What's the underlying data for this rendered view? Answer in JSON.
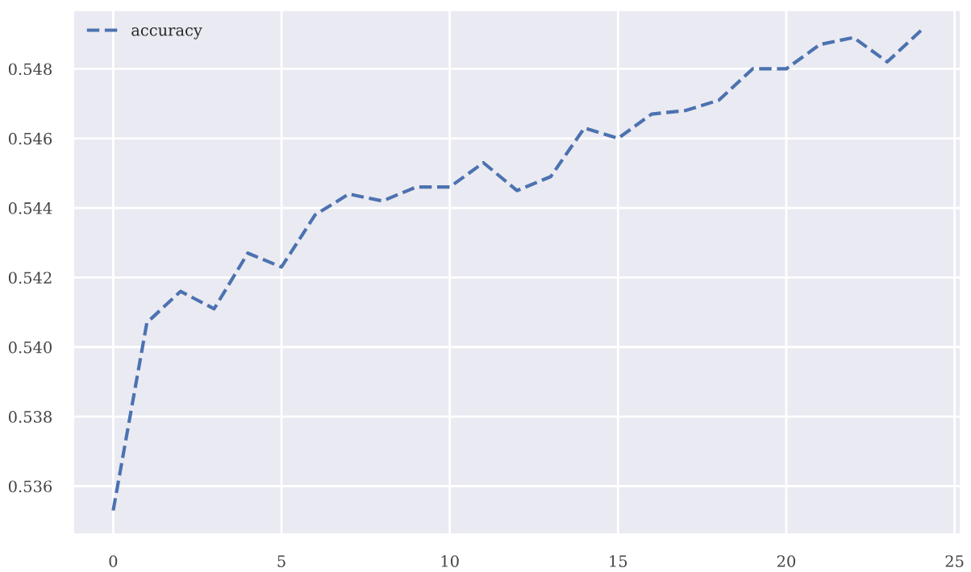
{
  "chart_data": {
    "type": "line",
    "x": [
      0,
      1,
      2,
      3,
      4,
      5,
      6,
      7,
      8,
      9,
      10,
      11,
      12,
      13,
      14,
      15,
      16,
      17,
      18,
      19,
      20,
      21,
      22,
      23,
      24
    ],
    "series": [
      {
        "name": "accuracy",
        "color": "#4c72b0",
        "values": [
          0.5353,
          0.5407,
          0.5416,
          0.5411,
          0.5427,
          0.5423,
          0.5438,
          0.5444,
          0.5442,
          0.5446,
          0.5446,
          0.5453,
          0.5445,
          0.5449,
          0.5463,
          0.546,
          0.5467,
          0.5468,
          0.5471,
          0.548,
          0.548,
          0.5487,
          0.5489,
          0.5482,
          0.5491
        ]
      }
    ],
    "xlim": [
      -1.2,
      25.2
    ],
    "xticks": [
      0,
      5,
      10,
      15,
      20,
      25
    ],
    "ylim": [
      0.5346,
      0.5497
    ],
    "yticks": [
      {
        "value": 0.536,
        "label": "0.536"
      },
      {
        "value": 0.538,
        "label": "0.538"
      },
      {
        "value": 0.54,
        "label": "0.540"
      },
      {
        "value": 0.542,
        "label": "0.542"
      },
      {
        "value": 0.544,
        "label": "0.544"
      },
      {
        "value": 0.546,
        "label": "0.546"
      },
      {
        "value": 0.548,
        "label": "0.548"
      }
    ],
    "grid": true,
    "legend": "top left",
    "line_style": "dashed",
    "marker": "none"
  }
}
